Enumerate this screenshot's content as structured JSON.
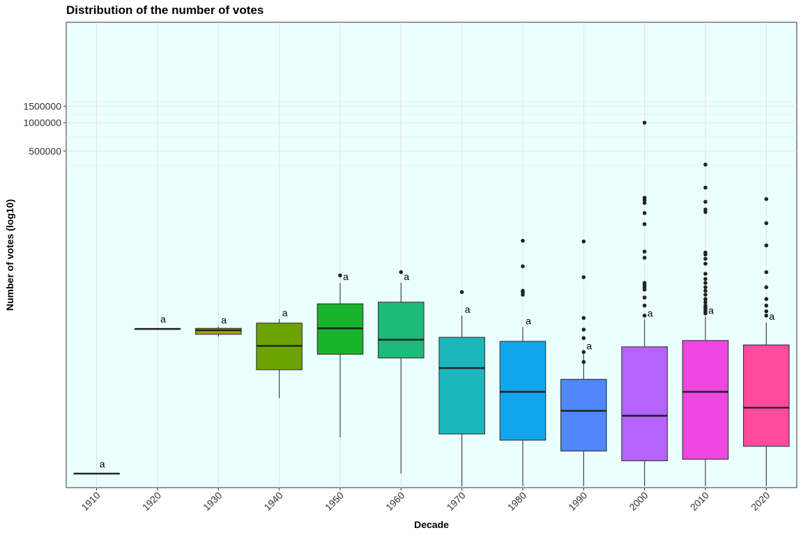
{
  "chart_data": {
    "type": "boxplot",
    "title": "Distribution of the number of votes",
    "xlabel": "Decade",
    "ylabel": "Number of votes (log10)",
    "y_scale": "log10",
    "y_tick_labels": [
      "1500000",
      "1000000",
      "500000"
    ],
    "y_ticks": [
      1500000,
      1000000,
      500000
    ],
    "grid": true,
    "panel_background": "#ECFFFF",
    "categories": [
      "1910",
      "1920",
      "1930",
      "1940",
      "1950",
      "1960",
      "1970",
      "1980",
      "1990",
      "2000",
      "2010",
      "2020"
    ],
    "colors": [
      "#F8766D",
      "#DE8C00",
      "#B79F00",
      "#7CAE00",
      "#00BA38",
      "#00C08B",
      "#00BFC4",
      "#00B4F0",
      "#619CFF",
      "#C77CFF",
      "#F564E3",
      "#FF64B0"
    ],
    "fill_colors": [
      "#F8766D",
      "#D89000",
      "#A3A500",
      "#6BA300",
      "#19B32C",
      "#1BBB7A",
      "#1BB7BC",
      "#13A5EC",
      "#5087FF",
      "#B663FF",
      "#EE47DF",
      "#FF4B9D"
    ],
    "boxes": [
      {
        "decade": "1910",
        "min": 190,
        "q1": 190,
        "median": 190,
        "q3": 190,
        "max": 190,
        "outliers": [],
        "group": "a"
      },
      {
        "decade": "1920",
        "min": 6500,
        "q1": 6500,
        "median": 6500,
        "q3": 6500,
        "max": 6500,
        "outliers": [],
        "group": "a"
      },
      {
        "decade": "1930",
        "min": 5400,
        "q1": 5700,
        "median": 6300,
        "q3": 6600,
        "max": 6900,
        "outliers": [],
        "group": "a"
      },
      {
        "decade": "1940",
        "min": 1200,
        "q1": 2400,
        "median": 4300,
        "q3": 7500,
        "max": 8300,
        "outliers": [],
        "group": "a"
      },
      {
        "decade": "1950",
        "min": 460,
        "q1": 3500,
        "median": 6600,
        "q3": 12000,
        "max": 20000,
        "outliers": [
          24000
        ],
        "group": "a"
      },
      {
        "decade": "1960",
        "min": 190,
        "q1": 3200,
        "median": 5000,
        "q3": 12500,
        "max": 20000,
        "outliers": [
          26000
        ],
        "group": "a"
      },
      {
        "decade": "1970",
        "min": 140,
        "q1": 500,
        "median": 2500,
        "q3": 5300,
        "max": 9000,
        "outliers": [
          16000
        ],
        "group": "a"
      },
      {
        "decade": "1980",
        "min": 140,
        "q1": 430,
        "median": 1400,
        "q3": 4800,
        "max": 6800,
        "outliers": [
          15000,
          16000,
          16500,
          30000,
          56000
        ],
        "group": "a"
      },
      {
        "decade": "1990",
        "min": 140,
        "q1": 330,
        "median": 880,
        "q3": 1900,
        "max": 3700,
        "outliers": [
          2900,
          3700,
          5200,
          6400,
          8500,
          23000,
          55000
        ],
        "group": "a"
      },
      {
        "decade": "2000",
        "min": 140,
        "q1": 260,
        "median": 780,
        "q3": 4200,
        "max": 8200,
        "outliers": [
          9000,
          11500,
          14000,
          17000,
          18000,
          19000,
          20000,
          37000,
          43000,
          84000,
          110000,
          141000,
          151000,
          160000,
          1000000
        ],
        "group": "a"
      },
      {
        "decade": "2010",
        "min": 140,
        "q1": 270,
        "median": 1400,
        "q3": 4900,
        "max": 8800,
        "outliers": [
          9500,
          10000,
          10500,
          11000,
          11500,
          12500,
          13500,
          15000,
          16500,
          18000,
          20000,
          22000,
          25000,
          32000,
          36000,
          40000,
          42000,
          113000,
          120000,
          145000,
          205000,
          360000
        ],
        "group": "a"
      },
      {
        "decade": "2020",
        "min": 140,
        "q1": 370,
        "median": 950,
        "q3": 4400,
        "max": 7600,
        "outliers": [
          9000,
          10000,
          11500,
          13500,
          18000,
          26000,
          50000,
          86000,
          155000
        ],
        "group": "a"
      }
    ]
  }
}
